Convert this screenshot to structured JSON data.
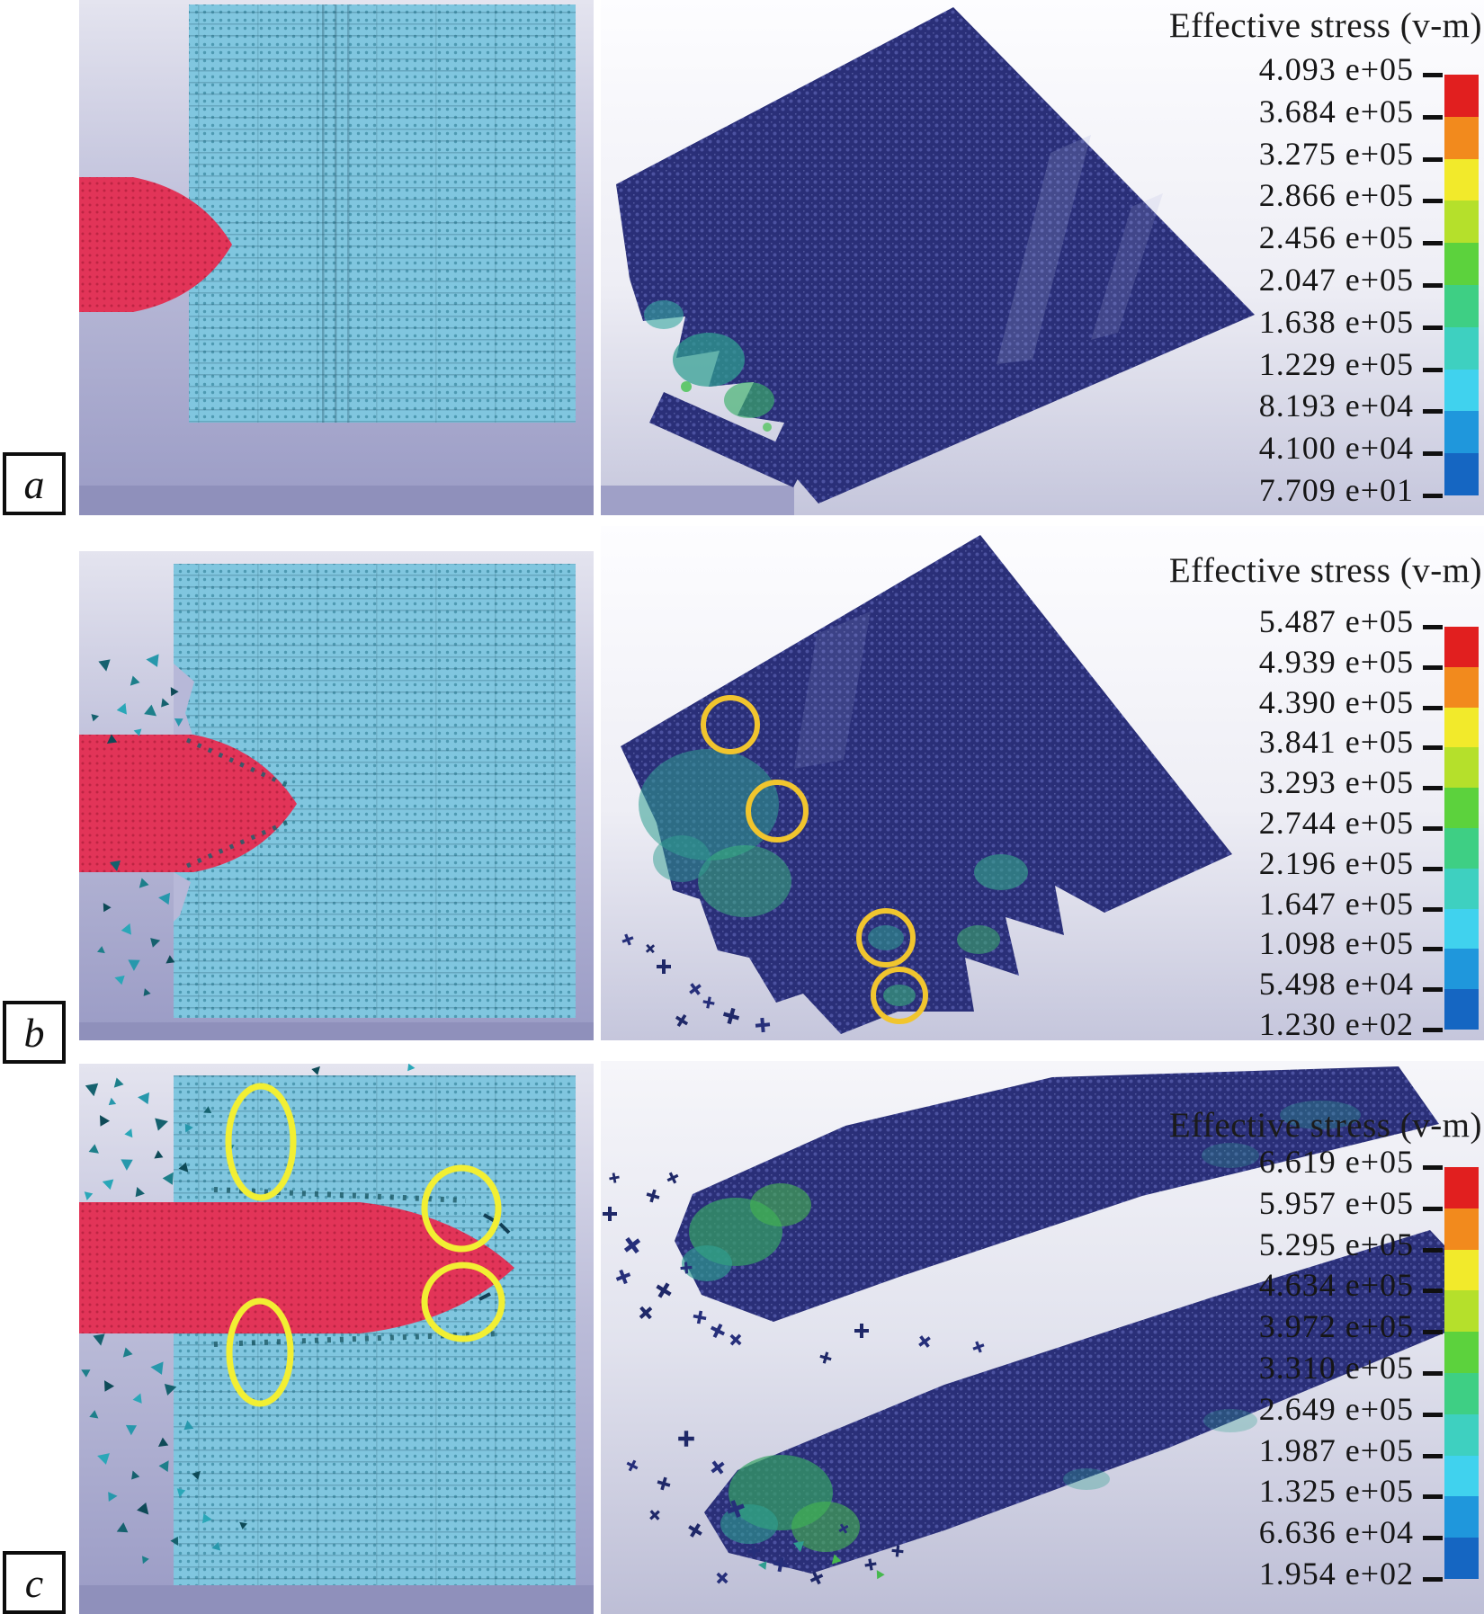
{
  "figure_type": "impact-simulation-figure",
  "rows": [
    {
      "label": "a",
      "legend": {
        "title": "Effective stress (v-m)",
        "values": [
          "4.093 e+05",
          "3.684 e+05",
          "3.275 e+05",
          "2.866 e+05",
          "2.456 e+05",
          "2.047 e+05",
          "1.638 e+05",
          "1.229 e+05",
          "8.193 e+04",
          "4.100 e+04",
          "7.709 e+01"
        ]
      }
    },
    {
      "label": "b",
      "legend": {
        "title": "Effective stress (v-m)",
        "values": [
          "5.487 e+05",
          "4.939 e+05",
          "4.390 e+05",
          "3.841 e+05",
          "3.293 e+05",
          "2.744 e+05",
          "2.196 e+05",
          "1.647 e+05",
          "1.098 e+05",
          "5.498 e+04",
          "1.230 e+02"
        ]
      }
    },
    {
      "label": "c",
      "legend": {
        "title": "Effective stress (v-m)",
        "values": [
          "6.619 e+05",
          "5.957 e+05",
          "5.295 e+05",
          "4.634 e+05",
          "3.972 e+05",
          "3.310 e+05",
          "2.649 e+05",
          "1.987 e+05",
          "1.325 e+05",
          "6.636 e+04",
          "1.954 e+02"
        ]
      }
    }
  ],
  "colorbar_colors": [
    "#e11f1f",
    "#f28a1d",
    "#f2ea2b",
    "#b5e02b",
    "#5cd23d",
    "#3ecf84",
    "#3ed0c0",
    "#40d2ee",
    "#1f97dc",
    "#1566c2"
  ],
  "colors": {
    "projectile_red": "#e23458",
    "target_plate_cyan": "#80c6df",
    "stress_mesh_navy": "#2a2f78",
    "stress_teal": "#2f9e90",
    "stress_green": "#3ab97b",
    "highlight_circle_yellow_b": "#f1c52e",
    "highlight_ellipse_yellow_c": "#f2ef33",
    "panel_background_lavender": "#9a9bc5",
    "debris_teal": "#1d7f8a"
  }
}
